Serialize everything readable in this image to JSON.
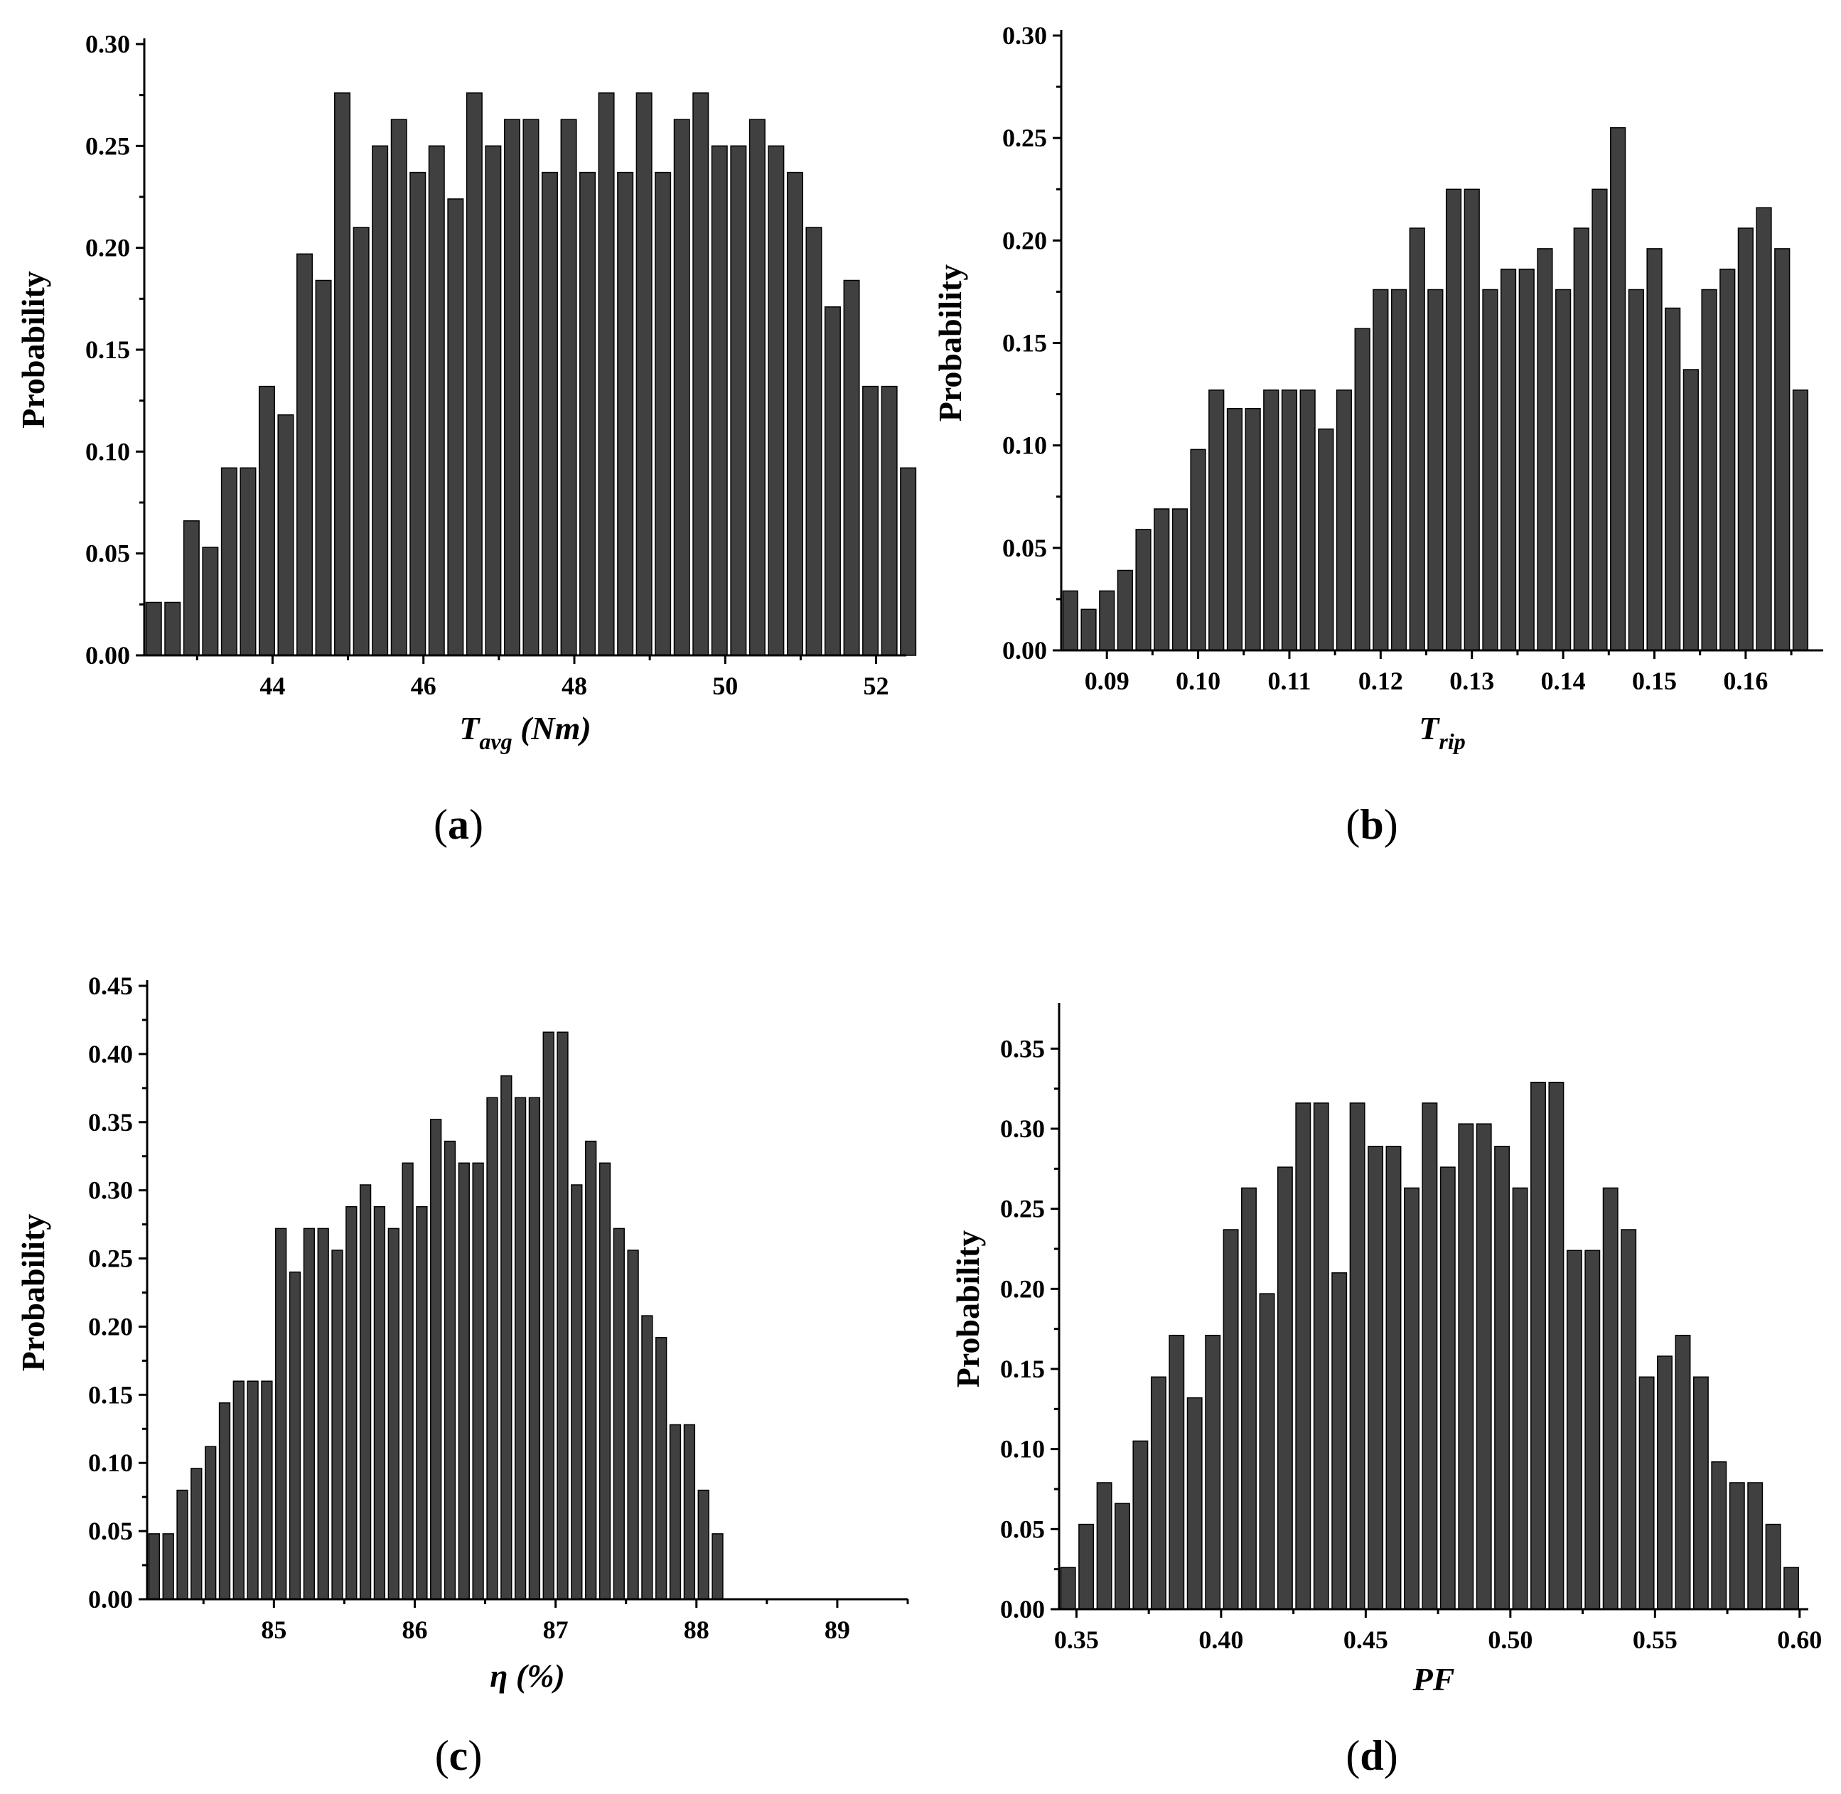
{
  "chart_data": [
    {
      "type": "bar",
      "panel_label": "a",
      "ylabel": "Probability",
      "xlabel": {
        "main": "T",
        "sub": "avg",
        "suffix": " (Nm)"
      },
      "ylim": [
        0,
        0.3
      ],
      "yticks": [
        0.0,
        0.05,
        0.1,
        0.15,
        0.2,
        0.25,
        0.3
      ],
      "ytick_labels": [
        "0.00",
        "0.05",
        "0.10",
        "0.15",
        "0.20",
        "0.25",
        "0.30"
      ],
      "xlim": [
        42.3,
        52.4
      ],
      "xticks": [
        44,
        46,
        48,
        50,
        52
      ],
      "xtick_labels": [
        "44",
        "46",
        "48",
        "50",
        "52"
      ],
      "bin_start": 42.3,
      "bin_width": 0.25,
      "values": [
        0.026,
        0.026,
        0.066,
        0.053,
        0.092,
        0.092,
        0.132,
        0.118,
        0.197,
        0.184,
        0.276,
        0.21,
        0.25,
        0.263,
        0.237,
        0.25,
        0.224,
        0.276,
        0.25,
        0.263,
        0.263,
        0.237,
        0.263,
        0.237,
        0.276,
        0.237,
        0.276,
        0.237,
        0.263,
        0.276,
        0.25,
        0.25,
        0.263,
        0.25,
        0.237,
        0.21,
        0.171,
        0.184,
        0.132,
        0.132,
        0.092
      ]
    },
    {
      "type": "bar",
      "panel_label": "b",
      "ylabel": "Probability",
      "xlabel": {
        "main": "T",
        "sub": "rip",
        "suffix": ""
      },
      "ylim": [
        0,
        0.3
      ],
      "yticks": [
        0.0,
        0.05,
        0.1,
        0.15,
        0.2,
        0.25,
        0.3
      ],
      "ytick_labels": [
        "0.00",
        "0.05",
        "0.10",
        "0.15",
        "0.20",
        "0.25",
        "0.30"
      ],
      "xlim": [
        0.085,
        0.1685
      ],
      "xticks": [
        0.09,
        0.1,
        0.11,
        0.12,
        0.13,
        0.14,
        0.15,
        0.16
      ],
      "xtick_labels": [
        "0.09",
        "0.10",
        "0.11",
        "0.12",
        "0.13",
        "0.14",
        "0.15",
        "0.16"
      ],
      "bin_start": 0.085,
      "bin_width": 0.002,
      "values": [
        0.029,
        0.02,
        0.029,
        0.039,
        0.059,
        0.069,
        0.069,
        0.098,
        0.127,
        0.118,
        0.118,
        0.127,
        0.127,
        0.127,
        0.108,
        0.127,
        0.157,
        0.176,
        0.176,
        0.206,
        0.176,
        0.225,
        0.225,
        0.176,
        0.186,
        0.186,
        0.196,
        0.176,
        0.206,
        0.225,
        0.255,
        0.176,
        0.196,
        0.167,
        0.137,
        0.176,
        0.186,
        0.206,
        0.216,
        0.196,
        0.127
      ]
    },
    {
      "type": "bar",
      "panel_label": "c",
      "ylabel": "Probability",
      "xlabel": {
        "main": "η",
        "sub": "",
        "suffix": " (%)"
      },
      "ylim": [
        0,
        0.45
      ],
      "yticks": [
        0.0,
        0.05,
        0.1,
        0.15,
        0.2,
        0.25,
        0.3,
        0.35,
        0.4,
        0.45
      ],
      "ytick_labels": [
        "0.00",
        "0.05",
        "0.10",
        "0.15",
        "0.20",
        "0.25",
        "0.30",
        "0.35",
        "0.40",
        "0.45"
      ],
      "xlim": [
        84.1,
        89.5
      ],
      "xticks": [
        85,
        86,
        87,
        88,
        89
      ],
      "xtick_labels": [
        "85",
        "86",
        "87",
        "88",
        "89"
      ],
      "bin_start": 84.1,
      "bin_width": 0.1,
      "values": [
        0.048,
        0.048,
        0.08,
        0.096,
        0.112,
        0.144,
        0.16,
        0.16,
        0.16,
        0.272,
        0.24,
        0.272,
        0.272,
        0.256,
        0.288,
        0.304,
        0.288,
        0.272,
        0.32,
        0.288,
        0.352,
        0.336,
        0.32,
        0.32,
        0.368,
        0.384,
        0.368,
        0.368,
        0.416,
        0.416,
        0.304,
        0.336,
        0.32,
        0.272,
        0.256,
        0.208,
        0.192,
        0.128,
        0.128,
        0.08,
        0.048
      ]
    },
    {
      "type": "bar",
      "panel_label": "d",
      "ylabel": "Probability",
      "xlabel": {
        "main": "PF",
        "sub": "",
        "suffix": ""
      },
      "ylim": [
        0,
        0.375
      ],
      "yticks": [
        0.0,
        0.05,
        0.1,
        0.15,
        0.2,
        0.25,
        0.3,
        0.35
      ],
      "ytick_labels": [
        "0.00",
        "0.05",
        "0.10",
        "0.15",
        "0.20",
        "0.25",
        "0.30",
        "0.35"
      ],
      "xlim": [
        0.344,
        0.603
      ],
      "xticks": [
        0.35,
        0.4,
        0.45,
        0.5,
        0.55,
        0.6
      ],
      "xtick_labels": [
        "0.35",
        "0.40",
        "0.45",
        "0.50",
        "0.55",
        "0.60"
      ],
      "bin_start": 0.344,
      "bin_width": 0.00625,
      "values": [
        0.026,
        0.053,
        0.079,
        0.066,
        0.105,
        0.145,
        0.171,
        0.132,
        0.171,
        0.237,
        0.263,
        0.197,
        0.276,
        0.316,
        0.316,
        0.21,
        0.316,
        0.289,
        0.289,
        0.263,
        0.316,
        0.276,
        0.303,
        0.303,
        0.289,
        0.263,
        0.329,
        0.329,
        0.224,
        0.224,
        0.263,
        0.237,
        0.145,
        0.158,
        0.171,
        0.145,
        0.092,
        0.079,
        0.079,
        0.053,
        0.026
      ]
    }
  ]
}
